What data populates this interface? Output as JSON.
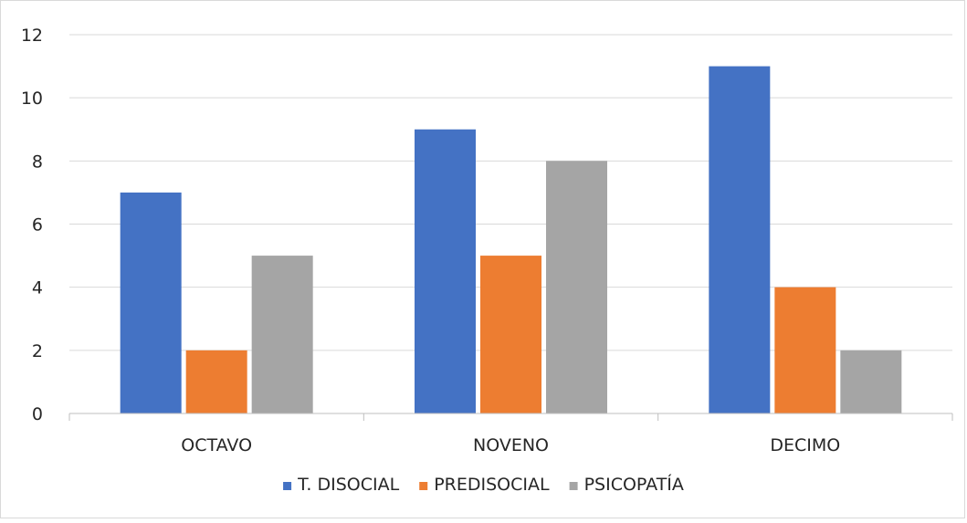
{
  "chart_data": {
    "type": "bar",
    "title": "",
    "xlabel": "",
    "ylabel": "",
    "categories": [
      "OCTAVO",
      "NOVENO",
      "DECIMO"
    ],
    "series": [
      {
        "name": "T. DISOCIAL",
        "values": [
          7,
          9,
          11
        ],
        "color": "#4472c4"
      },
      {
        "name": "PREDISOCIAL",
        "values": [
          2,
          5,
          4
        ],
        "color": "#ed7d31"
      },
      {
        "name": "PSICOPATÍA",
        "values": [
          5,
          8,
          2
        ],
        "color": "#a5a5a5"
      }
    ],
    "ylim": [
      0,
      12
    ],
    "yticks": [
      "0",
      "2",
      "4",
      "6",
      "8",
      "10",
      "12"
    ],
    "grid": true,
    "legend_position": "bottom",
    "gridline_color": "#d9d9d9"
  }
}
